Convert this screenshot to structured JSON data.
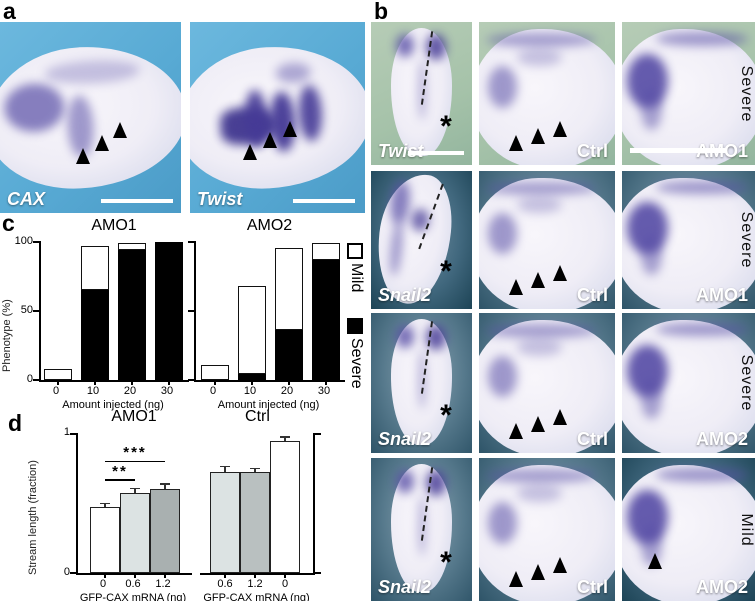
{
  "colors": {
    "stain_purple": "#584ea6",
    "panel_a_bg": "#58aad4",
    "panel_b_row1_bg": "#a5c2a9",
    "panel_b_teal_bg": "#41687e",
    "severe_fill": "#000000",
    "mild_fill": "#ffffff",
    "bar_gray_light": "#dce3e3",
    "bar_gray_mid": "#b9c0c0",
    "bar_gray_dark": "#a9b0b0"
  },
  "panel_a": {
    "letter": "a",
    "images": [
      {
        "gene": "CAX",
        "arrowheads": 3,
        "scalebar": true
      },
      {
        "gene": "Twist",
        "arrowheads": 3,
        "scalebar": true
      }
    ]
  },
  "panel_b": {
    "letter": "b",
    "rows": [
      {
        "cells": [
          {
            "variant": "dorsal",
            "bg": "green",
            "gene": "Twist",
            "asterisk": "*",
            "dashed_line": true,
            "scalebar": "small-right",
            "arrowheads": 0
          },
          {
            "variant": "lateral",
            "bg": "green",
            "label": "Ctrl",
            "arrowheads": 3
          },
          {
            "variant": "lateral3",
            "bg": "green",
            "label": "AMO1",
            "side": "Severe",
            "scalebar": "long-left",
            "arrowheads": 0
          }
        ]
      },
      {
        "cells": [
          {
            "variant": "cshape",
            "bg": "teal-dark",
            "gene": "Snail2",
            "asterisk": "*",
            "dashed_line": true,
            "arrowheads": 0
          },
          {
            "variant": "lateral",
            "bg": "teal",
            "label": "Ctrl",
            "arrowheads": 3
          },
          {
            "variant": "lateral3",
            "bg": "teal",
            "label": "AMO1",
            "side": "Severe",
            "arrowheads": 0
          }
        ]
      },
      {
        "cells": [
          {
            "variant": "dorsal",
            "bg": "teal",
            "gene": "Snail2",
            "asterisk": "*",
            "dashed_line": true,
            "arrowheads": 0
          },
          {
            "variant": "lateral",
            "bg": "teal",
            "label": "Ctrl",
            "arrowheads": 3
          },
          {
            "variant": "lateral3",
            "bg": "teal",
            "label": "AMO2",
            "side": "Severe",
            "arrowheads": 0
          }
        ]
      },
      {
        "cells": [
          {
            "variant": "dorsal",
            "bg": "teal",
            "gene": "Snail2",
            "asterisk": "*",
            "dashed_line": true,
            "arrowheads": 0
          },
          {
            "variant": "lateral",
            "bg": "teal",
            "label": "Ctrl",
            "arrowheads": 3
          },
          {
            "variant": "lateral3",
            "bg": "teal-dark",
            "label": "AMO2",
            "side": "Mild",
            "arrowheads": 1
          }
        ]
      }
    ]
  },
  "panel_c": {
    "letter": "c",
    "legend": [
      {
        "label": "Mild",
        "color": "#ffffff"
      },
      {
        "label": "Severe",
        "color": "#000000"
      }
    ]
  },
  "panel_d": {
    "letter": "d"
  },
  "chart_data": [
    {
      "id": "c-amo1",
      "type": "stacked_bar",
      "title": "AMO1",
      "categories": [
        "0",
        "10",
        "20",
        "30"
      ],
      "series": [
        {
          "name": "Severe",
          "color": "#000000",
          "values": [
            0,
            65,
            94,
            100
          ]
        },
        {
          "name": "Mild",
          "color": "#ffffff",
          "values": [
            8,
            32,
            5,
            0
          ]
        }
      ],
      "ylabel": "Phenotype (%)",
      "xlabel": "Amount injected (ng)",
      "ylim": [
        0,
        100
      ],
      "yticks": [
        0,
        50,
        100
      ],
      "show_ytick_labels": true,
      "legend_position": "right of AMO2 chart"
    },
    {
      "id": "c-amo2",
      "type": "stacked_bar",
      "title": "AMO2",
      "categories": [
        "0",
        "10",
        "20",
        "30"
      ],
      "series": [
        {
          "name": "Severe",
          "color": "#000000",
          "values": [
            0,
            4,
            36,
            87
          ]
        },
        {
          "name": "Mild",
          "color": "#ffffff",
          "values": [
            11,
            64,
            60,
            12
          ]
        }
      ],
      "ylabel": "Phenotype (%)",
      "xlabel": "Amount injected (ng)",
      "ylim": [
        0,
        100
      ],
      "yticks": [
        0,
        50,
        100
      ],
      "show_ytick_labels": false
    },
    {
      "id": "d-amo1",
      "type": "bar",
      "title": "AMO1",
      "categories": [
        "0",
        "0.6",
        "1.2"
      ],
      "values": [
        0.47,
        0.57,
        0.6
      ],
      "errors": [
        0.02,
        0.03,
        0.03
      ],
      "bar_colors": [
        "#ffffff",
        "#dce3e3",
        "#a9b0b0"
      ],
      "ylabel": "Stream length (fraction)",
      "xlabel": "GFP-CAX mRNA (ng)",
      "ylim": [
        0,
        1
      ],
      "yticks": [
        0,
        1
      ],
      "axis_side": "left",
      "show_ytick_labels": true,
      "significance": [
        {
          "from": 0,
          "to": 1,
          "label": "**",
          "y": 0.66
        },
        {
          "from": 0,
          "to": 2,
          "label": "***",
          "y": 0.79
        }
      ]
    },
    {
      "id": "d-ctrl",
      "type": "bar",
      "title": "Ctrl",
      "categories": [
        "0.6",
        "1.2",
        "0"
      ],
      "values": [
        0.72,
        0.72,
        0.94
      ],
      "errors": [
        0.035,
        0.02,
        0.025
      ],
      "bar_colors": [
        "#dce3e3",
        "#b9c0c0",
        "#ffffff"
      ],
      "xlabel": "GFP-CAX mRNA (ng)",
      "ylim": [
        0,
        1
      ],
      "yticks": [
        0,
        1
      ],
      "axis_side": "right",
      "show_ytick_labels": false
    }
  ]
}
